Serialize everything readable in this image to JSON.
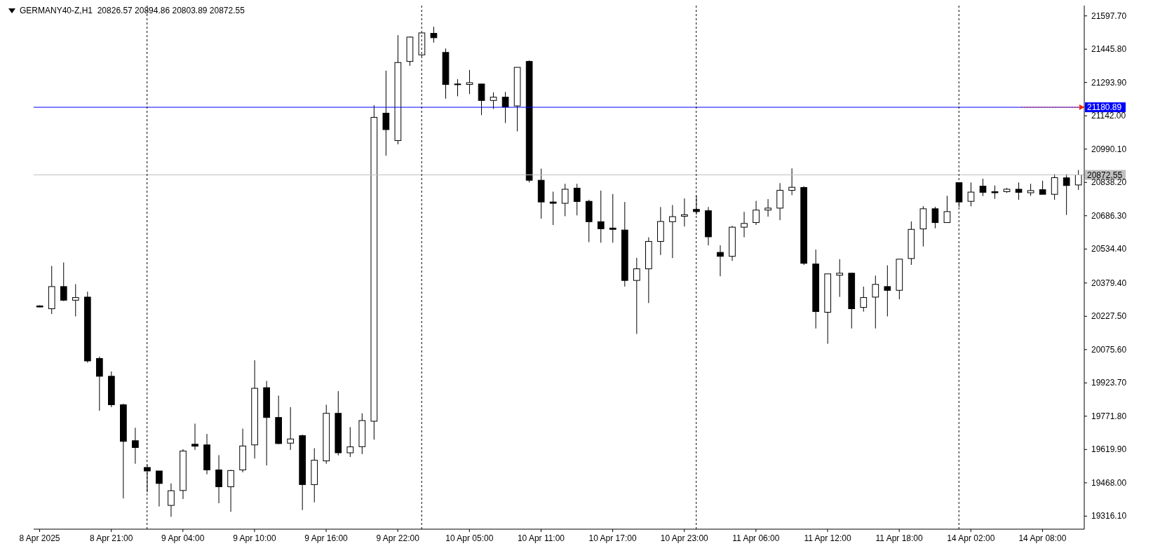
{
  "chart_data": {
    "type": "candlestick",
    "title": "GERMANY40-Z,H1  20826.57 20894.86 20803.89 20872.55",
    "color": "#000000",
    "categories": [
      "8 Apr 2025",
      null,
      null,
      null,
      null,
      null,
      "8 Apr 21:00",
      null,
      null,
      null,
      null,
      null,
      "9 Apr 04:00",
      null,
      null,
      null,
      null,
      null,
      "9 Apr 10:00",
      null,
      null,
      null,
      null,
      null,
      "9 Apr 16:00",
      null,
      null,
      null,
      null,
      null,
      "9 Apr 22:00",
      null,
      null,
      null,
      null,
      null,
      "10 Apr 05:00",
      null,
      null,
      null,
      null,
      null,
      "10 Apr 11:00",
      null,
      null,
      null,
      null,
      null,
      "10 Apr 17:00",
      null,
      null,
      null,
      null,
      null,
      "10 Apr 23:00",
      null,
      null,
      null,
      null,
      null,
      "11 Apr 06:00",
      null,
      null,
      null,
      null,
      null,
      "11 Apr 12:00",
      null,
      null,
      null,
      null,
      null,
      "11 Apr 18:00",
      null,
      null,
      null,
      null,
      null,
      "14 Apr 02:00",
      null,
      null,
      null,
      null,
      null,
      "14 Apr 08:00",
      null,
      null,
      null
    ],
    "ohlc": [
      [
        20275,
        20278,
        20268,
        20270
      ],
      [
        20262,
        20457,
        20238,
        20363
      ],
      [
        20363,
        20473,
        20297,
        20301
      ],
      [
        20301,
        20374,
        20227,
        20313
      ],
      [
        20315,
        20340,
        20016,
        20024
      ],
      [
        20035,
        20044,
        19797,
        19954
      ],
      [
        19954,
        19976,
        19813,
        19824
      ],
      [
        19824,
        19829,
        19397,
        19657
      ],
      [
        19660,
        19719,
        19555,
        19629
      ],
      [
        19538,
        19550,
        19425,
        19522
      ],
      [
        19522,
        19522,
        19360,
        19465
      ],
      [
        19365,
        19465,
        19313,
        19432
      ],
      [
        19433,
        19621,
        19394,
        19613
      ],
      [
        19644,
        19738,
        19618,
        19635
      ],
      [
        19641,
        19691,
        19507,
        19527
      ],
      [
        19527,
        19594,
        19375,
        19450
      ],
      [
        19450,
        19527,
        19336,
        19524
      ],
      [
        19527,
        19715,
        19516,
        19636
      ],
      [
        19641,
        20027,
        19579,
        19899
      ],
      [
        19902,
        19933,
        19547,
        19766
      ],
      [
        19766,
        19866,
        19644,
        19647
      ],
      [
        19649,
        19813,
        19618,
        19668
      ],
      [
        19683,
        19688,
        19344,
        19460
      ],
      [
        19460,
        19626,
        19379,
        19571
      ],
      [
        19568,
        19824,
        19555,
        19785
      ],
      [
        19785,
        19886,
        19593,
        19605
      ],
      [
        19605,
        19722,
        19586,
        19632
      ],
      [
        19633,
        19785,
        19599,
        19752
      ],
      [
        19749,
        21190,
        19665,
        21135
      ],
      [
        21154,
        21348,
        20960,
        21079
      ],
      [
        21029,
        21510,
        21012,
        21385
      ],
      [
        21390,
        21504,
        21370,
        21501
      ],
      [
        21420,
        21520,
        21413,
        21520
      ],
      [
        21518,
        21548,
        21476,
        21498
      ],
      [
        21431,
        21449,
        21220,
        21285
      ],
      [
        21287,
        21309,
        21231,
        21284
      ],
      [
        21285,
        21351,
        21241,
        21293
      ],
      [
        21287,
        21287,
        21145,
        21212
      ],
      [
        21212,
        21249,
        21173,
        21227
      ],
      [
        21227,
        21251,
        21109,
        21182
      ],
      [
        21187,
        21363,
        21071,
        21363
      ],
      [
        21390,
        21395,
        20838,
        20848
      ],
      [
        20848,
        20901,
        20673,
        20749
      ],
      [
        20749,
        20796,
        20644,
        20743
      ],
      [
        20743,
        20832,
        20684,
        20807
      ],
      [
        20812,
        20832,
        20688,
        20751
      ],
      [
        20752,
        20759,
        20566,
        20659
      ],
      [
        20659,
        20801,
        20563,
        20627
      ],
      [
        20630,
        20785,
        20563,
        20624
      ],
      [
        20621,
        20749,
        20363,
        20391
      ],
      [
        20391,
        20494,
        20147,
        20444
      ],
      [
        20444,
        20588,
        20288,
        20569
      ],
      [
        20569,
        20726,
        20507,
        20660
      ],
      [
        20659,
        20735,
        20493,
        20682
      ],
      [
        20684,
        20765,
        20637,
        20691
      ],
      [
        20715,
        20777,
        20691,
        20705
      ],
      [
        20709,
        20726,
        20551,
        20590
      ],
      [
        20519,
        20551,
        20410,
        20501
      ],
      [
        20501,
        20640,
        20480,
        20634
      ],
      [
        20634,
        20704,
        20588,
        20651
      ],
      [
        20655,
        20754,
        20644,
        20712
      ],
      [
        20712,
        20762,
        20682,
        20721
      ],
      [
        20721,
        20835,
        20666,
        20802
      ],
      [
        20802,
        20902,
        20780,
        20816
      ],
      [
        20815,
        20821,
        20462,
        20469
      ],
      [
        20466,
        20532,
        20172,
        20249
      ],
      [
        20246,
        20421,
        20102,
        20421
      ],
      [
        20415,
        20488,
        20316,
        20424
      ],
      [
        20424,
        20426,
        20172,
        20262
      ],
      [
        20268,
        20363,
        20249,
        20313
      ],
      [
        20315,
        20413,
        20172,
        20373
      ],
      [
        20363,
        20460,
        20227,
        20346
      ],
      [
        20346,
        20488,
        20305,
        20488
      ],
      [
        20491,
        20660,
        20462,
        20624
      ],
      [
        20626,
        20730,
        20546,
        20718
      ],
      [
        20718,
        20727,
        20629,
        20655
      ],
      [
        20655,
        20777,
        20655,
        20705
      ],
      [
        20837,
        20837,
        20726,
        20749
      ],
      [
        20752,
        20838,
        20729,
        20794
      ],
      [
        20821,
        20855,
        20776,
        20793
      ],
      [
        20796,
        20824,
        20763,
        20791
      ],
      [
        20796,
        20813,
        20791,
        20807
      ],
      [
        20807,
        20838,
        20759,
        20793
      ],
      [
        20791,
        20832,
        20777,
        20801
      ],
      [
        20805,
        20846,
        20784,
        20784
      ],
      [
        20784,
        20876,
        20759,
        20860
      ],
      [
        20859,
        20876,
        20690,
        20824
      ],
      [
        20826.57,
        20894.86,
        20803.89,
        20872.55
      ]
    ],
    "ylim": [
      19256.6,
      21644.6
    ],
    "yticks": [
      {
        "value": 21597.7,
        "label": "21597.70"
      },
      {
        "value": 21445.8,
        "label": "21445.80"
      },
      {
        "value": 21293.9,
        "label": "21293.90"
      },
      {
        "value": 21142,
        "label": "21142.00"
      },
      {
        "value": 20990.1,
        "label": "20990.10"
      },
      {
        "value": 20838.2,
        "label": "20838.20"
      },
      {
        "value": 20686.3,
        "label": "20686.30"
      },
      {
        "value": 20534.4,
        "label": "20534.40"
      },
      {
        "value": 20379.4,
        "label": "20379.40"
      },
      {
        "value": 20227.5,
        "label": "20227.50"
      },
      {
        "value": 20075.6,
        "label": "20075.60"
      },
      {
        "value": 19923.7,
        "label": "19923.70"
      },
      {
        "value": 19771.8,
        "label": "19771.80"
      },
      {
        "value": 19619.9,
        "label": "19619.90"
      },
      {
        "value": 19468,
        "label": "19468.00"
      },
      {
        "value": 19316.1,
        "label": "19316.10"
      }
    ],
    "ref_lines": [
      {
        "axis": "y",
        "value": 21180.89,
        "label": "21180.89",
        "color": "#0000ff"
      },
      {
        "axis": "y",
        "value": 20872.55,
        "label": "20872.55",
        "color": "#c0c0c0"
      }
    ],
    "grid": "x",
    "legend": false
  }
}
